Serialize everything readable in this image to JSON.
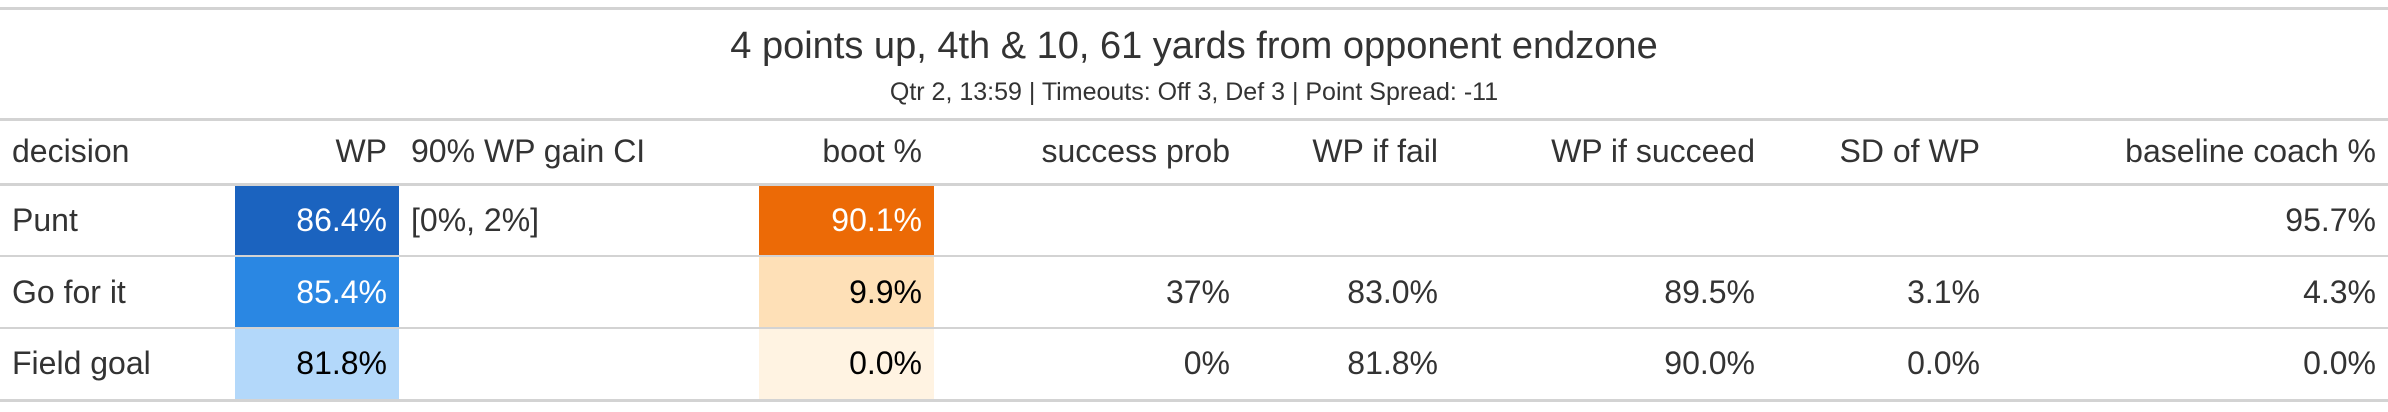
{
  "title": "4 points up, 4th & 10, 61 yards from opponent endzone",
  "subtitle": "Qtr 2, 13:59 | Timeouts: Off 3, Def 3 | Point Spread: -11",
  "columns": {
    "decision": "decision",
    "wp": "WP",
    "ci": "90% WP gain CI",
    "boot": "boot %",
    "success_prob": "success prob",
    "wp_fail": "WP if fail",
    "wp_succeed": "WP if succeed",
    "sd": "SD of WP",
    "baseline": "baseline coach %"
  },
  "rows": [
    {
      "decision": "Punt",
      "wp": "86.4%",
      "ci": "[0%, 2%]",
      "boot": "90.1%",
      "success_prob": "",
      "wp_fail": "",
      "wp_succeed": "",
      "sd": "",
      "baseline": "95.7%"
    },
    {
      "decision": "Go for it",
      "wp": "85.4%",
      "ci": "",
      "boot": "9.9%",
      "success_prob": "37%",
      "wp_fail": "83.0%",
      "wp_succeed": "89.5%",
      "sd": "3.1%",
      "baseline": "4.3%"
    },
    {
      "decision": "Field goal",
      "wp": "81.8%",
      "ci": "",
      "boot": "0.0%",
      "success_prob": "0%",
      "wp_fail": "81.8%",
      "wp_succeed": "90.0%",
      "sd": "0.0%",
      "baseline": "0.0%"
    }
  ],
  "colors": {
    "wp_high": "#1b63bf",
    "wp_mid": "#2a87e3",
    "wp_low": "#b3d8fa",
    "boot_high": "#ec6a06",
    "boot_mid": "#fee0b7",
    "boot_low": "#fff3e2",
    "rule": "#d3d3d3"
  }
}
